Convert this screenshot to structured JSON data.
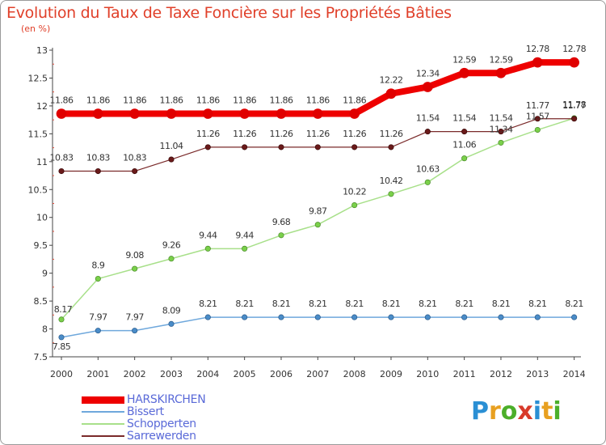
{
  "title": "Evolution du Taux de Taxe Foncière sur les Propriétés Bâties",
  "subtitle": "(en %)",
  "logo": {
    "letters": [
      "P",
      "r",
      "o",
      "x",
      "i",
      "t",
      "i"
    ],
    "colors": [
      "#2a8fd4",
      "#e8a020",
      "#4caf2a",
      "#d83a2a",
      "#2a8fd4",
      "#e8a020",
      "#4caf2a"
    ]
  },
  "chart_data": {
    "type": "line",
    "x": [
      "2000",
      "2001",
      "2002",
      "2003",
      "2004",
      "2005",
      "2006",
      "2007",
      "2008",
      "2009",
      "2010",
      "2011",
      "2012",
      "2013",
      "2014"
    ],
    "ylim": [
      7.5,
      13
    ],
    "yticks": [
      7.5,
      8,
      8.5,
      9,
      9.5,
      10,
      10.5,
      11,
      11.5,
      12,
      12.5,
      13
    ],
    "ytick_labels": [
      "7.5",
      "8",
      "8.5",
      "9",
      "9.5",
      "10",
      "10.5",
      "11",
      "11.5",
      "12",
      "12.5",
      "13"
    ],
    "grid": false,
    "legend_position": "bottom-left",
    "series": [
      {
        "name": "HARSKIRCHEN",
        "color": "#ee0000",
        "values": [
          11.86,
          11.86,
          11.86,
          11.86,
          11.86,
          11.86,
          11.86,
          11.86,
          11.86,
          12.22,
          12.34,
          12.59,
          12.59,
          12.78,
          12.78
        ],
        "labels": [
          "11.86",
          "11.86",
          "11.86",
          "11.86",
          "11.86",
          "11.86",
          "11.86",
          "11.86",
          "11.86",
          "12.22",
          "12.34",
          "12.59",
          "12.59",
          "12.78",
          "12.78"
        ]
      },
      {
        "name": "Bissert",
        "color": "#6fa8dc",
        "values": [
          7.85,
          7.97,
          7.97,
          8.09,
          8.21,
          8.21,
          8.21,
          8.21,
          8.21,
          8.21,
          8.21,
          8.21,
          8.21,
          8.21,
          8.21
        ],
        "labels": [
          "7.85",
          "7.97",
          "7.97",
          "8.09",
          "8.21",
          "8.21",
          "8.21",
          "8.21",
          "8.21",
          "8.21",
          "8.21",
          "8.21",
          "8.21",
          "8.21",
          "8.21"
        ]
      },
      {
        "name": "Schopperten",
        "color": "#a8e08a",
        "values": [
          8.17,
          8.9,
          9.08,
          9.26,
          9.44,
          9.44,
          9.68,
          9.87,
          10.22,
          10.42,
          10.63,
          11.06,
          11.34,
          11.57,
          11.78
        ],
        "labels": [
          "8.17",
          "8.9",
          "9.08",
          "9.26",
          "9.44",
          "9.44",
          "9.68",
          "9.87",
          "10.22",
          "10.42",
          "10.63",
          "11.06",
          "11.34",
          "11.57",
          "11.78"
        ]
      },
      {
        "name": "Sarrewerden",
        "color": "#7a2a2a",
        "values": [
          10.83,
          10.83,
          10.83,
          11.04,
          11.26,
          11.26,
          11.26,
          11.26,
          11.26,
          11.26,
          11.54,
          11.54,
          11.54,
          11.77,
          11.77
        ],
        "labels": [
          "10.83",
          "10.83",
          "10.83",
          "11.04",
          "11.26",
          "11.26",
          "11.26",
          "11.26",
          "11.26",
          "11.26",
          "11.54",
          "11.54",
          "11.54",
          "11.77",
          "11.77"
        ]
      }
    ]
  }
}
